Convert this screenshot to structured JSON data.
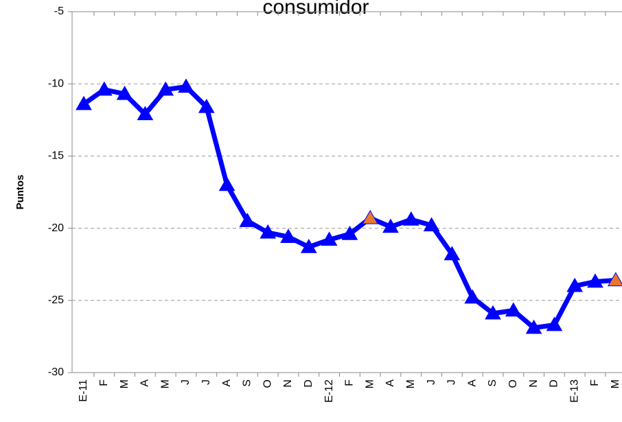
{
  "chart_data": {
    "type": "line",
    "title": "consumidor",
    "y_label": "Puntos",
    "categories": [
      "E-11",
      "F",
      "M",
      "A",
      "M",
      "J",
      "J",
      "A",
      "S",
      "O",
      "N",
      "D",
      "E-12",
      "F",
      "M",
      "A",
      "M",
      "J",
      "J",
      "A",
      "S",
      "O",
      "N",
      "D",
      "E-13",
      "F",
      "M"
    ],
    "series": [
      {
        "name": "Puntos",
        "color": "#0000ff",
        "marker_color": "#0000ff",
        "highlight_color": "#e8772e",
        "highlight_points": [
          14,
          26
        ],
        "values": [
          -11.4,
          -10.4,
          -10.7,
          -12.1,
          -10.4,
          -10.2,
          -11.6,
          -17.0,
          -19.5,
          -20.3,
          -20.6,
          -21.3,
          -20.8,
          -20.4,
          -19.3,
          -19.9,
          -19.4,
          -19.8,
          -21.8,
          -24.8,
          -25.9,
          -25.7,
          -26.9,
          -26.7,
          -24.0,
          -23.7,
          -23.6
        ]
      }
    ],
    "ylim": [
      -30,
      -5
    ],
    "yticks": [
      -30,
      -25,
      -20,
      -15,
      -10,
      -5
    ],
    "grid": true
  }
}
